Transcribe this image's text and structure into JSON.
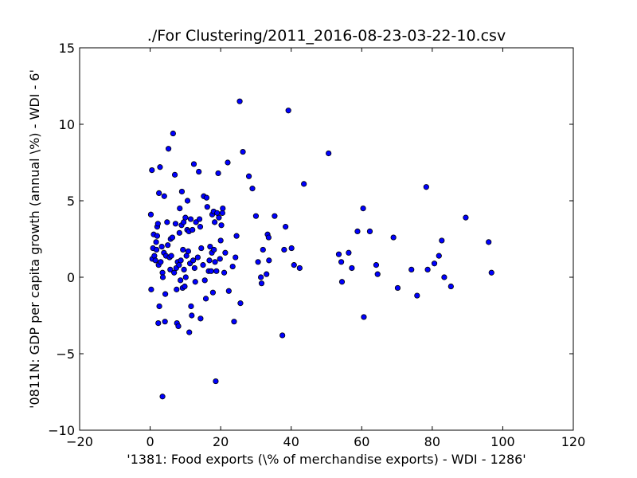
{
  "chart_data": {
    "type": "scatter",
    "title": "./For Clustering/2011_2016-08-23-03-22-10.csv",
    "xlabel": "'1381: Food exports  (\\% of merchandise exports) - WDI - 1286'",
    "ylabel": "'0811N: GDP per capita growth  (annual \\%) - WDI - 6'",
    "xlim": [
      -20,
      120
    ],
    "ylim": [
      -10,
      15
    ],
    "xticks": [
      -20,
      0,
      20,
      40,
      60,
      80,
      100,
      120
    ],
    "yticks": [
      -10,
      -5,
      0,
      5,
      10,
      15
    ],
    "xtick_labels": [
      "−20",
      "0",
      "20",
      "40",
      "60",
      "80",
      "100",
      "120"
    ],
    "ytick_labels": [
      "−10",
      "−5",
      "0",
      "5",
      "10",
      "15"
    ],
    "grid": false,
    "marker_color": "#0000ff",
    "series": [
      {
        "points": [
          [
            0.2,
            4.1
          ],
          [
            0.5,
            7.0
          ],
          [
            0.3,
            -0.8
          ],
          [
            0.6,
            1.2
          ],
          [
            0.8,
            1.9
          ],
          [
            1.2,
            1.4
          ],
          [
            1.0,
            2.8
          ],
          [
            1.5,
            1.1
          ],
          [
            1.7,
            2.3
          ],
          [
            1.8,
            1.8
          ],
          [
            2.0,
            3.3
          ],
          [
            2.2,
            3.5
          ],
          [
            2.0,
            2.7
          ],
          [
            2.4,
            0.8
          ],
          [
            2.5,
            5.5
          ],
          [
            2.8,
            7.2
          ],
          [
            2.6,
            -1.9
          ],
          [
            2.3,
            -3.0
          ],
          [
            3.0,
            1.0
          ],
          [
            3.3,
            2.0
          ],
          [
            3.5,
            0.3
          ],
          [
            3.6,
            0.0
          ],
          [
            3.5,
            -7.8
          ],
          [
            3.9,
            1.6
          ],
          [
            4.0,
            5.3
          ],
          [
            4.2,
            -2.9
          ],
          [
            4.3,
            -1.1
          ],
          [
            4.5,
            1.4
          ],
          [
            4.8,
            3.6
          ],
          [
            5.0,
            2.1
          ],
          [
            5.2,
            8.4
          ],
          [
            5.5,
            1.3
          ],
          [
            5.7,
            0.5
          ],
          [
            5.8,
            2.5
          ],
          [
            6.0,
            1.4
          ],
          [
            6.3,
            2.6
          ],
          [
            6.5,
            9.4
          ],
          [
            6.8,
            0.3
          ],
          [
            7.0,
            6.7
          ],
          [
            7.2,
            3.5
          ],
          [
            7.4,
            0.6
          ],
          [
            7.5,
            -0.8
          ],
          [
            7.6,
            -3.0
          ],
          [
            7.8,
            1.0
          ],
          [
            8.0,
            -3.2
          ],
          [
            8.2,
            0.8
          ],
          [
            8.3,
            2.9
          ],
          [
            8.4,
            4.5
          ],
          [
            8.6,
            -0.2
          ],
          [
            8.7,
            1.1
          ],
          [
            8.9,
            3.4
          ],
          [
            9.0,
            5.6
          ],
          [
            9.2,
            -0.7
          ],
          [
            9.3,
            1.8
          ],
          [
            9.5,
            3.6
          ],
          [
            9.6,
            0.5
          ],
          [
            9.8,
            -0.6
          ],
          [
            10.0,
            3.9
          ],
          [
            10.1,
            0.0
          ],
          [
            10.3,
            1.4
          ],
          [
            10.5,
            3.1
          ],
          [
            10.6,
            5.0
          ],
          [
            10.8,
            1.7
          ],
          [
            11.0,
            3.0
          ],
          [
            11.1,
            -3.6
          ],
          [
            11.3,
            0.9
          ],
          [
            11.5,
            3.8
          ],
          [
            11.6,
            -1.9
          ],
          [
            11.8,
            -2.5
          ],
          [
            12.0,
            3.1
          ],
          [
            12.2,
            1.1
          ],
          [
            12.4,
            7.4
          ],
          [
            12.6,
            0.6
          ],
          [
            12.8,
            -0.3
          ],
          [
            13.0,
            3.6
          ],
          [
            13.5,
            1.3
          ],
          [
            13.8,
            6.9
          ],
          [
            14.0,
            3.8
          ],
          [
            14.2,
            3.3
          ],
          [
            14.3,
            -2.7
          ],
          [
            14.5,
            1.9
          ],
          [
            15.0,
            0.8
          ],
          [
            15.2,
            5.3
          ],
          [
            15.5,
            -0.2
          ],
          [
            15.8,
            -1.4
          ],
          [
            16.0,
            5.2
          ],
          [
            16.2,
            4.6
          ],
          [
            16.6,
            0.4
          ],
          [
            16.8,
            1.1
          ],
          [
            17.0,
            2.0
          ],
          [
            17.3,
            0.4
          ],
          [
            17.5,
            1.6
          ],
          [
            17.6,
            4.1
          ],
          [
            17.8,
            -1.0
          ],
          [
            18.0,
            4.3
          ],
          [
            18.1,
            1.8
          ],
          [
            18.3,
            3.6
          ],
          [
            18.4,
            1.0
          ],
          [
            18.6,
            -6.8
          ],
          [
            18.8,
            0.4
          ],
          [
            19.0,
            4.2
          ],
          [
            19.3,
            6.8
          ],
          [
            19.5,
            3.9
          ],
          [
            19.8,
            1.2
          ],
          [
            20.0,
            2.4
          ],
          [
            20.2,
            3.4
          ],
          [
            20.5,
            4.2
          ],
          [
            20.6,
            4.5
          ],
          [
            21.0,
            0.3
          ],
          [
            21.3,
            1.6
          ],
          [
            22.0,
            7.5
          ],
          [
            22.3,
            -0.9
          ],
          [
            23.4,
            0.7
          ],
          [
            23.8,
            -2.9
          ],
          [
            24.2,
            1.3
          ],
          [
            24.5,
            2.7
          ],
          [
            25.4,
            11.5
          ],
          [
            25.6,
            -1.7
          ],
          [
            26.3,
            8.2
          ],
          [
            28.0,
            6.6
          ],
          [
            29.0,
            5.8
          ],
          [
            30.0,
            4.0
          ],
          [
            30.6,
            1.0
          ],
          [
            31.4,
            0.0
          ],
          [
            31.6,
            -0.4
          ],
          [
            32.0,
            1.8
          ],
          [
            33.0,
            0.2
          ],
          [
            33.3,
            2.8
          ],
          [
            33.6,
            2.6
          ],
          [
            33.7,
            1.1
          ],
          [
            35.3,
            4.0
          ],
          [
            37.5,
            -3.8
          ],
          [
            38.0,
            1.8
          ],
          [
            38.4,
            3.3
          ],
          [
            39.2,
            10.9
          ],
          [
            40.1,
            1.9
          ],
          [
            40.8,
            0.8
          ],
          [
            42.4,
            0.6
          ],
          [
            43.6,
            6.1
          ],
          [
            50.6,
            8.1
          ],
          [
            53.5,
            1.5
          ],
          [
            54.2,
            1.0
          ],
          [
            54.4,
            -0.3
          ],
          [
            56.3,
            1.6
          ],
          [
            57.2,
            0.6
          ],
          [
            58.8,
            3.0
          ],
          [
            60.4,
            4.5
          ],
          [
            60.6,
            -2.6
          ],
          [
            62.3,
            3.0
          ],
          [
            64.1,
            0.8
          ],
          [
            64.5,
            0.2
          ],
          [
            69.0,
            2.6
          ],
          [
            70.2,
            -0.7
          ],
          [
            74.1,
            0.5
          ],
          [
            75.7,
            -1.2
          ],
          [
            78.3,
            5.9
          ],
          [
            78.7,
            0.5
          ],
          [
            80.6,
            0.9
          ],
          [
            81.9,
            1.4
          ],
          [
            82.7,
            2.4
          ],
          [
            83.4,
            0.0
          ],
          [
            85.3,
            -0.6
          ],
          [
            89.5,
            3.9
          ],
          [
            96.0,
            2.3
          ],
          [
            96.8,
            0.3
          ]
        ]
      }
    ]
  }
}
